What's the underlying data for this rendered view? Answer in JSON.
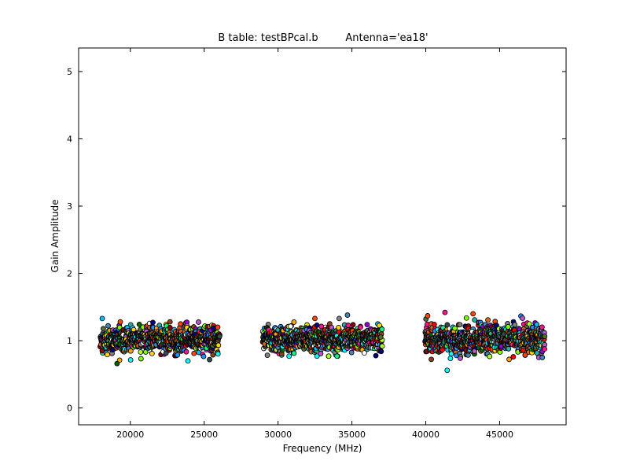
{
  "chart_data": {
    "type": "scatter",
    "title_left": "B table: testBPcal.b",
    "title_right": "Antenna='ea18'",
    "xlabel": "Frequency (MHz)",
    "ylabel": "Gain Amplitude",
    "xlim": [
      16500,
      49500
    ],
    "ylim": [
      -0.25,
      5.35
    ],
    "xticks": [
      20000,
      25000,
      30000,
      35000,
      40000,
      45000
    ],
    "yticks": [
      0,
      1,
      2,
      3,
      4,
      5
    ],
    "grid": false,
    "bands": [
      {
        "x_start": 18000,
        "x_end": 26000,
        "center": 1.02,
        "spread": 0.11,
        "max": 1.33,
        "min": 0.66
      },
      {
        "x_start": 29000,
        "x_end": 37000,
        "center": 1.02,
        "spread": 0.11,
        "max": 1.38,
        "min": 0.72
      },
      {
        "x_start": 40000,
        "x_end": 48000,
        "center": 1.02,
        "spread": 0.13,
        "max": 1.42,
        "min": 0.56
      }
    ],
    "outliers": [
      {
        "x": 41450,
        "y": 0.56
      },
      {
        "x": 41300,
        "y": 1.42
      },
      {
        "x": 43200,
        "y": 1.4
      },
      {
        "x": 34700,
        "y": 1.38
      },
      {
        "x": 18100,
        "y": 1.33
      },
      {
        "x": 19100,
        "y": 0.66
      },
      {
        "x": 23900,
        "y": 0.7
      }
    ],
    "point_colors": [
      "#ff0000",
      "#00ffff",
      "#ffa500",
      "#9400d3",
      "#00ff7f",
      "#ff1493",
      "#1e90ff",
      "#adff2f",
      "#8b4513",
      "#2f4f4f",
      "#808080",
      "#ffffff",
      "#000080",
      "#006400",
      "#ff4500",
      "#ba55d3",
      "#20b2aa",
      "#d2691e",
      "#4682b4",
      "#556b2f",
      "#ffd700",
      "#00bfff",
      "#8b0000",
      "#7fff00"
    ]
  }
}
